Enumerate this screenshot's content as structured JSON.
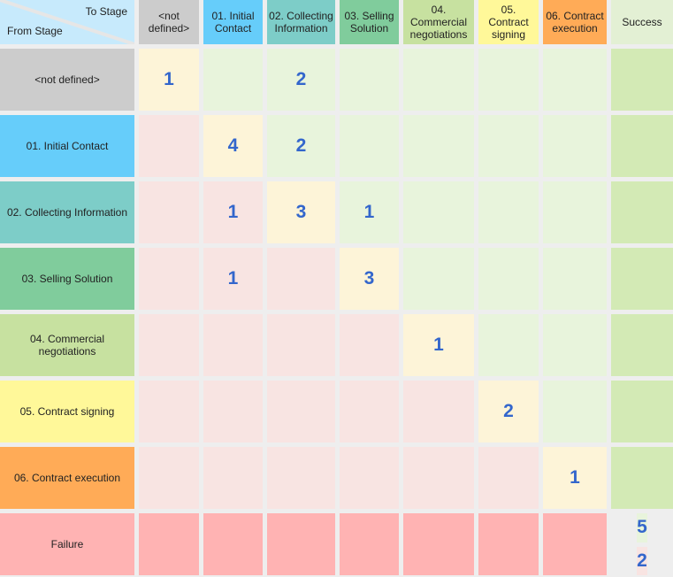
{
  "corner": {
    "to_label": "To Stage",
    "from_label": "From Stage"
  },
  "to_stages": [
    {
      "label": "<not defined>",
      "color": "#cccccc"
    },
    {
      "label": "01. Initial Contact",
      "color": "#66cdfa"
    },
    {
      "label": "02. Collecting Information",
      "color": "#7dcdc8"
    },
    {
      "label": "03. Selling Solution",
      "color": "#80cc9c"
    },
    {
      "label": "04. Commercial negotiations",
      "color": "#c7e1a0"
    },
    {
      "label": "05. Contract signing",
      "color": "#fff899"
    },
    {
      "label": "06. Contract execution",
      "color": "#ffab57"
    },
    {
      "label": "Success",
      "color": "#e3f0d4"
    }
  ],
  "from_stages": [
    {
      "label": "<not defined>",
      "color": "#cccccc"
    },
    {
      "label": "01. Initial Contact",
      "color": "#66cdfa"
    },
    {
      "label": "02. Collecting Information",
      "color": "#7dcdc8"
    },
    {
      "label": "03. Selling Solution",
      "color": "#80cc9c"
    },
    {
      "label": "04. Commercial negotiations",
      "color": "#c7e1a0"
    },
    {
      "label": "05. Contract signing",
      "color": "#fff899"
    },
    {
      "label": "06. Contract execution",
      "color": "#ffab57"
    },
    {
      "label": "Failure",
      "color": "#ffb3b3"
    }
  ],
  "matrix": [
    [
      "1",
      "",
      "2",
      "",
      "",
      "",
      "",
      ""
    ],
    [
      "",
      "4",
      "2",
      "",
      "",
      "",
      "",
      ""
    ],
    [
      "",
      "1",
      "3",
      "1",
      "",
      "",
      "",
      ""
    ],
    [
      "",
      "1",
      "",
      "3",
      "",
      "",
      "",
      ""
    ],
    [
      "",
      "",
      "",
      "",
      "1",
      "",
      "",
      ""
    ],
    [
      "",
      "",
      "",
      "",
      "",
      "2",
      "",
      ""
    ],
    [
      "",
      "",
      "",
      "",
      "",
      "",
      "1",
      ""
    ],
    [
      "",
      "",
      "",
      "",
      "",
      "",
      "",
      ""
    ]
  ],
  "failure_success": {
    "top": "5",
    "bottom": "2"
  },
  "colors": {
    "below": "#f8e4e2",
    "diagonal": "#fdf4d8",
    "above": "#e8f4dc",
    "success_col": "#d3eab5",
    "failure_row": "#ffb3b3",
    "number": "#3366cc"
  }
}
